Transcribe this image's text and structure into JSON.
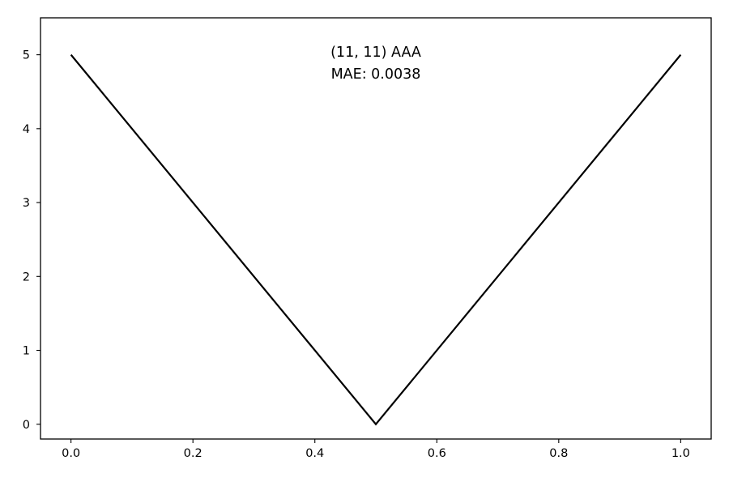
{
  "chart_data": {
    "type": "line",
    "title": "",
    "xlabel": "",
    "ylabel": "",
    "xlim": [
      -0.05,
      1.05
    ],
    "ylim": [
      -0.2,
      5.5
    ],
    "x_ticks": [
      0.0,
      0.2,
      0.4,
      0.6,
      0.8,
      1.0
    ],
    "x_tick_labels": [
      "0.0",
      "0.2",
      "0.4",
      "0.6",
      "0.8",
      "1.0"
    ],
    "y_ticks": [
      0,
      1,
      2,
      3,
      4,
      5
    ],
    "y_tick_labels": [
      "0",
      "1",
      "2",
      "3",
      "4",
      "5"
    ],
    "grid": false,
    "series": [
      {
        "x": [
          0.0,
          0.5,
          1.0
        ],
        "y": [
          5,
          0,
          5
        ],
        "color": "#000000"
      }
    ],
    "annotations": [
      "(11, 11) AAA",
      "MAE: 0.0038"
    ]
  }
}
